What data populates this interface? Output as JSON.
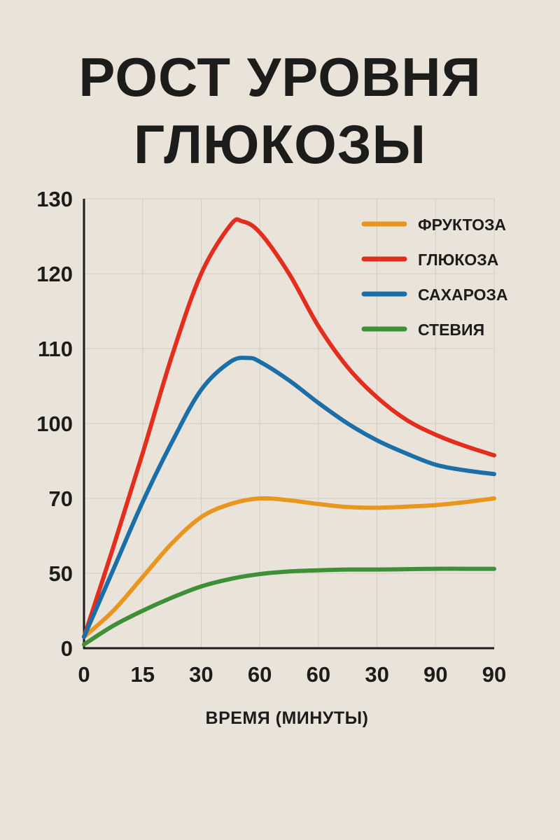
{
  "chart_data": {
    "type": "line",
    "title_lines": [
      "РОСТ УРОВНЯ",
      "ГЛЮКОЗЫ"
    ],
    "xlabel": "ВРЕМЯ (МИНУТЫ)",
    "ylabel": "",
    "x_tick_labels": [
      "0",
      "15",
      "30",
      "60",
      "60",
      "30",
      "90",
      "90"
    ],
    "y_tick_labels": [
      "0",
      "50",
      "70",
      "100",
      "110",
      "120",
      "130"
    ],
    "grid": true,
    "legend_position": "top-right",
    "series": [
      {
        "name": "ФРУКТОЗА",
        "color": "#e8961d",
        "points": [
          [
            0,
            3
          ],
          [
            0.5,
            10
          ],
          [
            1,
            19
          ],
          [
            1.5,
            28
          ],
          [
            2,
            35
          ],
          [
            2.5,
            38.5
          ],
          [
            3,
            40
          ],
          [
            3.5,
            39.5
          ],
          [
            4,
            38.5
          ],
          [
            4.5,
            37.7
          ],
          [
            5,
            37.5
          ],
          [
            5.5,
            37.8
          ],
          [
            6,
            38.2
          ],
          [
            6.5,
            39
          ],
          [
            7,
            40
          ]
        ]
      },
      {
        "name": "ГЛЮКОЗА",
        "color": "#e32d1d",
        "points": [
          [
            0,
            3
          ],
          [
            0.5,
            27
          ],
          [
            1,
            52
          ],
          [
            1.5,
            78
          ],
          [
            2,
            100
          ],
          [
            2.5,
            113
          ],
          [
            2.7,
            114
          ],
          [
            3,
            111
          ],
          [
            3.5,
            100
          ],
          [
            4,
            86
          ],
          [
            4.5,
            75
          ],
          [
            5,
            67
          ],
          [
            5.5,
            61
          ],
          [
            6,
            57
          ],
          [
            6.5,
            54
          ],
          [
            7,
            51.5
          ]
        ]
      },
      {
        "name": "САХАРОЗА",
        "color": "#1b6fa8",
        "points": [
          [
            0,
            3
          ],
          [
            0.5,
            21
          ],
          [
            1,
            39
          ],
          [
            1.5,
            55
          ],
          [
            2,
            69
          ],
          [
            2.5,
            76.5
          ],
          [
            2.8,
            77.5
          ],
          [
            3,
            76.5
          ],
          [
            3.5,
            71.5
          ],
          [
            4,
            65.5
          ],
          [
            4.5,
            60
          ],
          [
            5,
            55.5
          ],
          [
            5.5,
            52
          ],
          [
            6,
            49
          ],
          [
            6.5,
            47.5
          ],
          [
            7,
            46.5
          ]
        ]
      },
      {
        "name": "СТЕВИЯ",
        "color": "#3e9037",
        "points": [
          [
            0,
            1
          ],
          [
            0.5,
            6
          ],
          [
            1,
            10
          ],
          [
            1.5,
            13.5
          ],
          [
            2,
            16.5
          ],
          [
            2.5,
            18.5
          ],
          [
            3,
            19.8
          ],
          [
            3.5,
            20.5
          ],
          [
            4,
            20.8
          ],
          [
            4.5,
            21
          ],
          [
            5,
            21
          ],
          [
            5.5,
            21.1
          ],
          [
            6,
            21.2
          ],
          [
            6.5,
            21.2
          ],
          [
            7,
            21.2
          ]
        ]
      }
    ]
  }
}
